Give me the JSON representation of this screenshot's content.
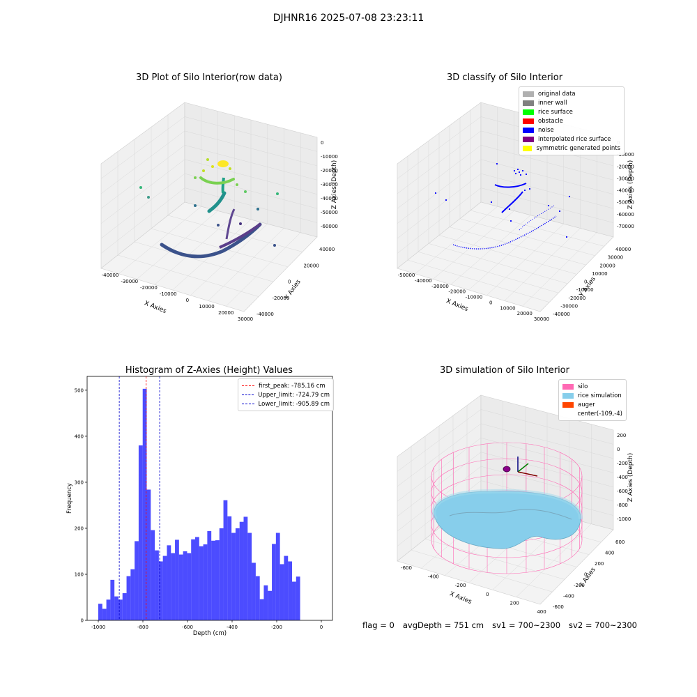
{
  "figure": {
    "title": "DJHNR16 2025-07-08 23:23:11"
  },
  "panels": {
    "raw": {
      "title": "3D Plot of Silo Interior(row data)",
      "xlabel": "X Axies",
      "ylabel": "Y Axies",
      "zlabel": "Z Axies (Depth)",
      "xticks": [
        "-40000",
        "-30000",
        "-20000",
        "-10000",
        "0",
        "10000",
        "20000",
        "30000"
      ],
      "yticks": [
        "-40000",
        "-20000",
        "0",
        "20000",
        "40000"
      ],
      "zticks": [
        "0",
        "-10000",
        "-20000",
        "-30000",
        "-40000",
        "-50000",
        "-60000"
      ]
    },
    "classify": {
      "title": "3D classify of Silo Interior",
      "xlabel": "X Axies",
      "ylabel": "Y Axies",
      "zlabel": "Z Axies (Depth)",
      "xticks": [
        "-50000",
        "-40000",
        "-30000",
        "-20000",
        "-10000",
        "0",
        "10000",
        "20000",
        "30000"
      ],
      "yticks": [
        "-40000",
        "-30000",
        "-20000",
        "-10000",
        "0",
        "10000",
        "20000",
        "30000",
        "40000"
      ],
      "zticks": [
        "0",
        "-10000",
        "-20000",
        "-30000",
        "-40000",
        "-50000",
        "-60000",
        "-70000"
      ],
      "legend": [
        {
          "label": "original data",
          "color": "#b0b0b0"
        },
        {
          "label": "inner wall",
          "color": "#808080"
        },
        {
          "label": "rice surface",
          "color": "#00ff00"
        },
        {
          "label": "obstacle",
          "color": "#ff0000"
        },
        {
          "label": "noise",
          "color": "#0000ff"
        },
        {
          "label": "interpolated rice surface",
          "color": "#800080"
        },
        {
          "label": "symmetric generated points",
          "color": "#ffff00"
        }
      ]
    },
    "simulation": {
      "title": "3D simulation of Silo Interior",
      "xlabel": "X Axies",
      "ylabel": "Y Axies",
      "zlabel": "Z Axies (Depth)",
      "xticks": [
        "-600",
        "-400",
        "-200",
        "0",
        "200",
        "400"
      ],
      "yticks": [
        "-600",
        "-400",
        "-200",
        "0",
        "200",
        "400",
        "600"
      ],
      "zticks": [
        "200",
        "0",
        "-200",
        "-400",
        "-600",
        "-800",
        "-1000"
      ],
      "legend": [
        {
          "label": "silo",
          "color": "#ff69b4"
        },
        {
          "label": "rice simulation",
          "color": "#87ceeb"
        },
        {
          "label": "auger",
          "color": "#ff4500"
        },
        {
          "label": "center(-109,-4)",
          "color": ""
        }
      ]
    }
  },
  "chart_data": {
    "type": "bar",
    "title": "Histogram of Z-Axies (Height) Values",
    "xlabel": "Depth (cm)",
    "ylabel": "Frequency",
    "xlim": [
      -1050,
      50
    ],
    "ylim": [
      0,
      530
    ],
    "xticks": [
      -1000,
      -800,
      -600,
      -400,
      -200,
      0
    ],
    "yticks": [
      0,
      100,
      200,
      300,
      400,
      500
    ],
    "bin_start": -1000,
    "bin_width": 18.1,
    "bar_color": "#0000ff",
    "values": [
      36,
      25,
      45,
      88,
      52,
      45,
      59,
      96,
      111,
      172,
      380,
      503,
      284,
      196,
      152,
      128,
      140,
      163,
      146,
      175,
      143,
      150,
      146,
      176,
      181,
      161,
      165,
      194,
      173,
      174,
      200,
      261,
      226,
      190,
      200,
      214,
      225,
      190,
      125,
      96,
      46,
      76,
      64,
      166,
      190,
      122,
      140,
      128,
      84,
      95
    ],
    "lines": [
      {
        "label": "first_peak: -785.16 cm",
        "x": -785.16,
        "color": "#ff0000"
      },
      {
        "label": "Upper_limit: -724.79 cm",
        "x": -724.79,
        "color": "#0000cc"
      },
      {
        "label": "Lower_limit: -905.89 cm",
        "x": -905.89,
        "color": "#0000cc"
      }
    ]
  },
  "status": {
    "flag": "flag = 0",
    "avg_depth": "avgDepth = 751 cm",
    "sv1": "sv1 = 700~2300",
    "sv2": "sv2 = 700~2300"
  }
}
